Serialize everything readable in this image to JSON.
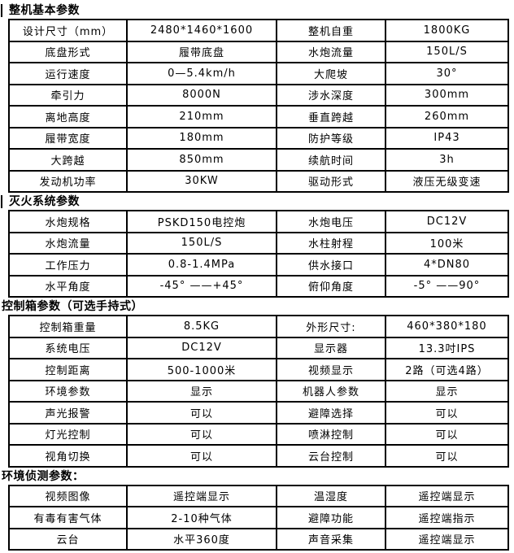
{
  "page": {
    "background_color": "#ffffff",
    "text_color": "#000000",
    "border_color": "#000000"
  },
  "sections": [
    {
      "title": "整机基本参数",
      "title_bar": true,
      "rows": [
        [
          "设计尺寸（mm）",
          "2480*1460*1600",
          "整机自重",
          "1800KG"
        ],
        [
          "底盘形式",
          "履带底盘",
          "水炮流量",
          "150L/S"
        ],
        [
          "运行速度",
          "0—5.4km/h",
          "大爬坡",
          "30°"
        ],
        [
          "牵引力",
          "8000N",
          "涉水深度",
          "300mm"
        ],
        [
          "离地高度",
          "210mm",
          "垂直跨越",
          "260mm"
        ],
        [
          "履带宽度",
          "180mm",
          "防护等级",
          "IP43"
        ],
        [
          "大跨越",
          "850mm",
          "续航时间",
          "3h"
        ],
        [
          "发动机功率",
          "30KW",
          "驱动形式",
          "液压无级变速"
        ]
      ]
    },
    {
      "title": "灭火系统参数",
      "title_bar": true,
      "rows": [
        [
          "水炮规格",
          "PSKD150电控炮",
          "水炮电压",
          "DC12V"
        ],
        [
          "水炮流量",
          "150L/S",
          "水柱射程",
          "100米"
        ],
        [
          "工作压力",
          "0.8-1.4MPa",
          "供水接口",
          "4*DN80"
        ],
        [
          "水平角度",
          "-45° ——+45°",
          "俯仰角度",
          "-5° ——90°"
        ]
      ]
    },
    {
      "title": "控制箱参数（可选手持式）",
      "title_bar": false,
      "rows": [
        [
          "控制箱重量",
          "8.5KG",
          "外形尺寸:",
          "460*380*180"
        ],
        [
          "系统电压",
          "DC12V",
          "显示器",
          "13.3吋IPS"
        ],
        [
          "控制距离",
          "500-1000米",
          "视频显示",
          "2路（可选4路）"
        ],
        [
          "环境参数",
          "显示",
          "机器人参数",
          "显示"
        ],
        [
          "声光报警",
          "可以",
          "避障选择",
          "可以"
        ],
        [
          "灯光控制",
          "可以",
          "喷淋控制",
          "可以"
        ],
        [
          "视角切换",
          "可以",
          "云台控制",
          "可以"
        ]
      ]
    },
    {
      "title": "环境侦测参数：",
      "title_bar": false,
      "rows": [
        [
          "视频图像",
          "遥控端显示",
          "温湿度",
          "遥控端显示"
        ],
        [
          "有毒有害气体",
          "2-10种气体",
          "避障功能",
          "遥控端指示"
        ],
        [
          "云台",
          "水平360度",
          "声音采集",
          "遥控端显示"
        ]
      ]
    }
  ]
}
